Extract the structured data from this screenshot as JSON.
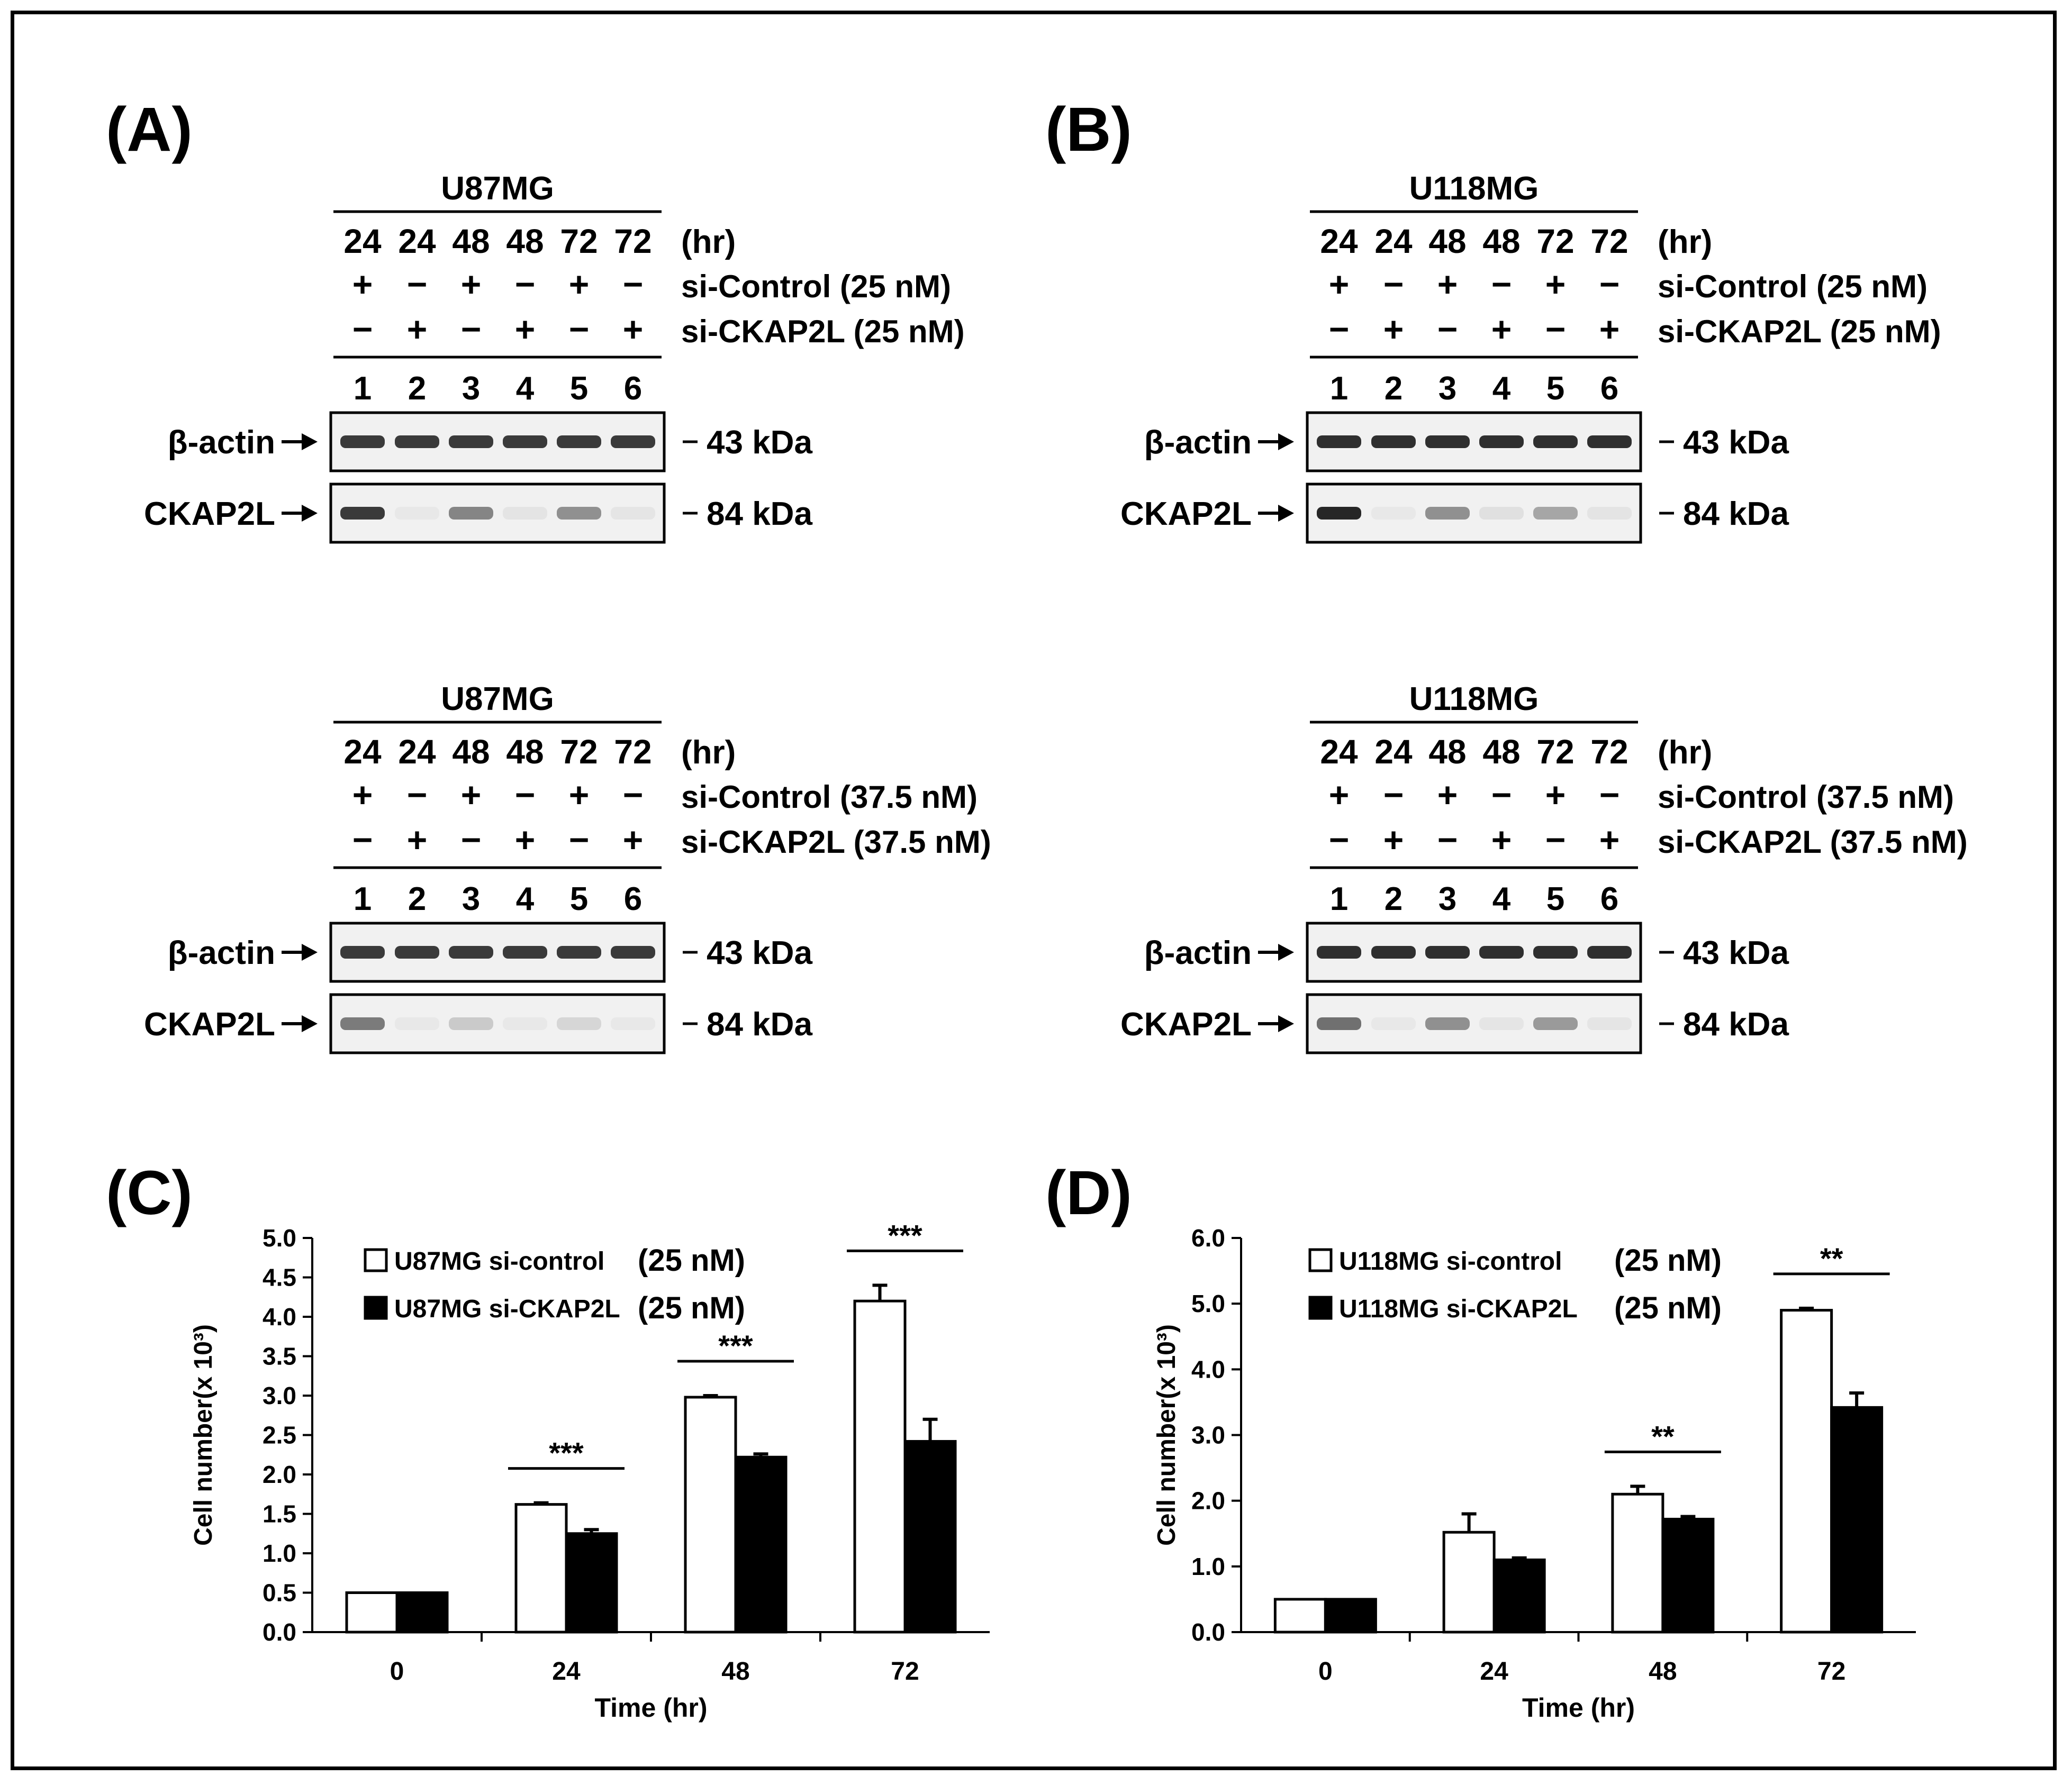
{
  "panels": {
    "A": {
      "label": "(A)",
      "blots": [
        {
          "cell_line": "U87MG",
          "time_unit": "(hr)",
          "times": [
            "24",
            "24",
            "48",
            "48",
            "72",
            "72"
          ],
          "control_label": "si-Control (25 nM)",
          "control_signs": [
            "+",
            "−",
            "+",
            "−",
            "+",
            "−"
          ],
          "knockdown_label": "si-CKAP2L (25 nM)",
          "knockdown_signs": [
            "−",
            "+",
            "−",
            "+",
            "−",
            "+"
          ],
          "lanes": [
            "1",
            "2",
            "3",
            "4",
            "5",
            "6"
          ],
          "rows": [
            {
              "protein": "β-actin",
              "marker": "43 kDa",
              "bands": [
                0.85,
                0.85,
                0.85,
                0.85,
                0.85,
                0.85
              ]
            },
            {
              "protein": "CKAP2L",
              "marker": "84 kDa",
              "bands": [
                0.85,
                0.04,
                0.5,
                0.06,
                0.45,
                0.05
              ]
            }
          ]
        },
        {
          "cell_line": "U87MG",
          "time_unit": "(hr)",
          "times": [
            "24",
            "24",
            "48",
            "48",
            "72",
            "72"
          ],
          "control_label": "si-Control (37.5 nM)",
          "control_signs": [
            "+",
            "−",
            "+",
            "−",
            "+",
            "−"
          ],
          "knockdown_label": "si-CKAP2L (37.5 nM)",
          "knockdown_signs": [
            "−",
            "+",
            "−",
            "+",
            "−",
            "+"
          ],
          "lanes": [
            "1",
            "2",
            "3",
            "4",
            "5",
            "6"
          ],
          "rows": [
            {
              "protein": "β-actin",
              "marker": "43 kDa",
              "bands": [
                0.85,
                0.85,
                0.85,
                0.85,
                0.85,
                0.85
              ]
            },
            {
              "protein": "CKAP2L",
              "marker": "84 kDa",
              "bands": [
                0.55,
                0.03,
                0.18,
                0.03,
                0.12,
                0.03
              ]
            }
          ]
        }
      ]
    },
    "B": {
      "label": "(B)",
      "blots": [
        {
          "cell_line": "U118MG",
          "time_unit": "(hr)",
          "times": [
            "24",
            "24",
            "48",
            "48",
            "72",
            "72"
          ],
          "control_label": "si-Control (25 nM)",
          "control_signs": [
            "+",
            "−",
            "+",
            "−",
            "+",
            "−"
          ],
          "knockdown_label": "si-CKAP2L (25 nM)",
          "knockdown_signs": [
            "−",
            "+",
            "−",
            "+",
            "−",
            "+"
          ],
          "lanes": [
            "1",
            "2",
            "3",
            "4",
            "5",
            "6"
          ],
          "rows": [
            {
              "protein": "β-actin",
              "marker": "43 kDa",
              "bands": [
                0.9,
                0.9,
                0.9,
                0.9,
                0.9,
                0.9
              ]
            },
            {
              "protein": "CKAP2L",
              "marker": "84 kDa",
              "bands": [
                0.95,
                0.04,
                0.45,
                0.08,
                0.35,
                0.06
              ]
            }
          ]
        },
        {
          "cell_line": "U118MG",
          "time_unit": "(hr)",
          "times": [
            "24",
            "24",
            "48",
            "48",
            "72",
            "72"
          ],
          "control_label": "si-Control (37.5 nM)",
          "control_signs": [
            "+",
            "−",
            "+",
            "−",
            "+",
            "−"
          ],
          "knockdown_label": "si-CKAP2L (37.5 nM)",
          "knockdown_signs": [
            "−",
            "+",
            "−",
            "+",
            "−",
            "+"
          ],
          "lanes": [
            "1",
            "2",
            "3",
            "4",
            "5",
            "6"
          ],
          "rows": [
            {
              "protein": "β-actin",
              "marker": "43 kDa",
              "bands": [
                0.9,
                0.9,
                0.9,
                0.9,
                0.9,
                0.9
              ]
            },
            {
              "protein": "CKAP2L",
              "marker": "84 kDa",
              "bands": [
                0.6,
                0.04,
                0.45,
                0.05,
                0.4,
                0.05
              ]
            }
          ]
        }
      ]
    }
  },
  "chart_data": [
    {
      "panel_label": "(C)",
      "type": "bar",
      "categories": [
        "0",
        "24",
        "48",
        "72"
      ],
      "xlabel": "Time (hr)",
      "ylabel": "Cell number(x 10³)",
      "ylim": [
        0,
        5.0
      ],
      "yticks": [
        "0.0",
        "0.5",
        "1.0",
        "1.5",
        "2.0",
        "2.5",
        "3.0",
        "3.5",
        "4.0",
        "4.5",
        "5.0"
      ],
      "legend_position": "top-left",
      "series": [
        {
          "name": "U87MG si-control",
          "name_suffix": "(25 nM)",
          "fill": "#ffffff",
          "values": [
            0.5,
            1.62,
            2.98,
            4.2
          ],
          "errors": [
            0,
            0.02,
            0.02,
            0.2
          ]
        },
        {
          "name": "U87MG si-CKAP2L",
          "name_suffix": "(25 nM)",
          "fill": "#000000",
          "values": [
            0.5,
            1.25,
            2.22,
            2.42
          ],
          "errors": [
            0,
            0.05,
            0.04,
            0.28
          ]
        }
      ],
      "significance": [
        {
          "category": "24",
          "label": "***"
        },
        {
          "category": "48",
          "label": "***"
        },
        {
          "category": "72",
          "label": "***"
        }
      ]
    },
    {
      "panel_label": "(D)",
      "type": "bar",
      "categories": [
        "0",
        "24",
        "48",
        "72"
      ],
      "xlabel": "Time (hr)",
      "ylabel": "Cell number(x 10³)",
      "ylim": [
        0,
        6.0
      ],
      "yticks": [
        "0.0",
        "1.0",
        "2.0",
        "3.0",
        "4.0",
        "5.0",
        "6.0"
      ],
      "legend_position": "top-left",
      "series": [
        {
          "name": "U118MG si-control",
          "name_suffix": "(25 nM)",
          "fill": "#ffffff",
          "values": [
            0.5,
            1.52,
            2.1,
            4.9
          ],
          "errors": [
            0,
            0.28,
            0.12,
            0.03
          ]
        },
        {
          "name": "U118MG si-CKAP2L",
          "name_suffix": "(25 nM)",
          "fill": "#000000",
          "values": [
            0.5,
            1.1,
            1.72,
            3.42
          ],
          "errors": [
            0,
            0.03,
            0.04,
            0.22
          ]
        }
      ],
      "significance": [
        {
          "category": "48",
          "label": "**"
        },
        {
          "category": "72",
          "label": "**"
        }
      ]
    }
  ]
}
